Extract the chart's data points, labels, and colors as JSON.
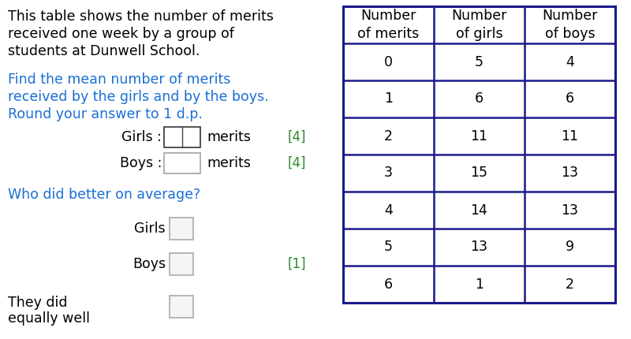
{
  "intro_text_line1": "This table shows the number of merits",
  "intro_text_line2": "received one week by a group of",
  "intro_text_line3": "students at Dunwell School.",
  "question_text_line1": "Find the mean number of merits",
  "question_text_line2": "received by the girls and by the boys.",
  "question_text_line3": "Round your answer to 1 d.p.",
  "girls_label": "Girls :",
  "boys_label": "Boys :",
  "merits_text": "merits",
  "mark4": "[4]",
  "who_text": "Who did better on average?",
  "girls_option": "Girls",
  "boys_option": "Boys",
  "equally_line1": "They did",
  "equally_line2": "equally well",
  "mark1": "[1]",
  "table_headers": [
    "Number\nof merits",
    "Number\nof girls",
    "Number\nof boys"
  ],
  "table_data": [
    [
      0,
      5,
      4
    ],
    [
      1,
      6,
      6
    ],
    [
      2,
      11,
      11
    ],
    [
      3,
      15,
      13
    ],
    [
      4,
      14,
      13
    ],
    [
      5,
      13,
      9
    ],
    [
      6,
      1,
      2
    ]
  ],
  "intro_color": "#000000",
  "question_color": "#1a6fd4",
  "mark_color": "#2d8a2d",
  "table_border_color": "#1a1a8c",
  "table_text_color": "#000000",
  "background_color": "#ffffff",
  "font_size_intro": 12.5,
  "font_size_question": 12.5,
  "font_size_table": 12.5,
  "font_size_marks": 12,
  "font_size_labels": 12.5
}
